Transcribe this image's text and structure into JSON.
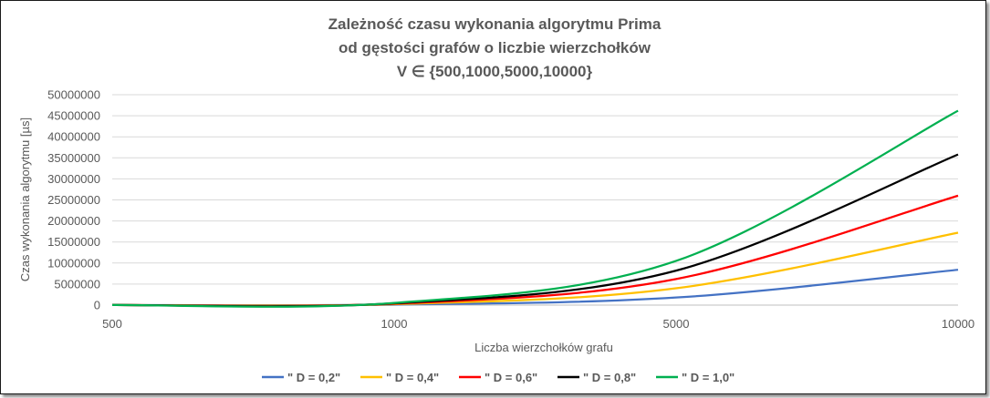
{
  "chart_data": {
    "type": "line",
    "title_lines": [
      "Zależność czasu wykonania algorytmu Prima",
      "od gęstości grafów o liczbie wierzchołków",
      "V ∈ {500,1000,5000,10000}"
    ],
    "xlabel": "Liczba wierzchołków grafu",
    "ylabel": "Czas wykonania algorytmu [µs]",
    "categories": [
      "500",
      "1000",
      "5000",
      "10000"
    ],
    "x_axis": "category",
    "ylim": [
      0,
      50000000
    ],
    "y_ticks": [
      "0",
      "5000000",
      "10000000",
      "15000000",
      "20000000",
      "25000000",
      "30000000",
      "35000000",
      "40000000",
      "45000000",
      "50000000"
    ],
    "grid": true,
    "legend_position": "bottom",
    "smoothed": true,
    "series": [
      {
        "name": "\" D = 0,2\"",
        "color": "#4472c4",
        "values": [
          15000,
          120000,
          1800000,
          8400000
        ]
      },
      {
        "name": "\" D = 0,4\"",
        "color": "#ffc000",
        "values": [
          20000,
          220000,
          4000000,
          17200000
        ]
      },
      {
        "name": "\" D = 0,6\"",
        "color": "#ff0000",
        "values": [
          25000,
          320000,
          6200000,
          26000000
        ]
      },
      {
        "name": "\" D = 0,8\"",
        "color": "#000000",
        "values": [
          30000,
          420000,
          8200000,
          35800000
        ]
      },
      {
        "name": "\" D = 1,0\"",
        "color": "#00b050",
        "values": [
          35000,
          520000,
          10500000,
          46200000
        ]
      }
    ]
  }
}
